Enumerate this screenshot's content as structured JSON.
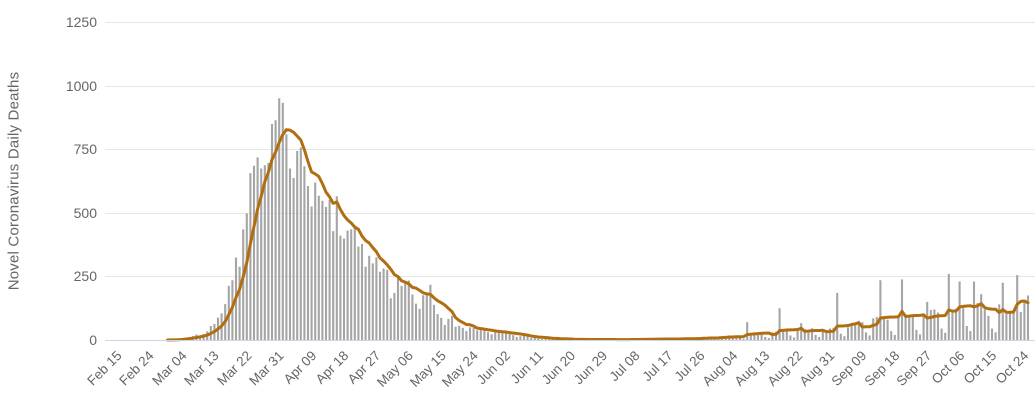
{
  "chart_data": {
    "type": "bar",
    "title": "",
    "xlabel": "",
    "ylabel": "Novel Coronavirus Daily Deaths",
    "ylim": [
      0,
      1250
    ],
    "y_ticks": [
      0,
      250,
      500,
      750,
      1000,
      1250
    ],
    "grid": "horizontal-only",
    "legend": "none",
    "x_tick_step_days": 9,
    "x_tick_labels": [
      "Feb 15",
      "Feb 24",
      "Mar 04",
      "Mar 13",
      "Mar 22",
      "Mar 31",
      "Apr 09",
      "Apr 18",
      "Apr 27",
      "May 06",
      "May 15",
      "May 24",
      "Jun 02",
      "Jun 11",
      "Jun 20",
      "Jun 29",
      "Jul 08",
      "Jul 17",
      "Jul 26",
      "Aug 04",
      "Aug 13",
      "Aug 22",
      "Aug 31",
      "Sep 09",
      "Sep 18",
      "Sep 27",
      "Oct 06",
      "Oct 15",
      "Oct 24"
    ],
    "x_start": "Feb 15",
    "x_end": "Oct 27",
    "series": [
      {
        "name": "daily-deaths",
        "render": "bar",
        "values": [
          0,
          0,
          0,
          0,
          0,
          0,
          0,
          0,
          0,
          0,
          0,
          0,
          0,
          0,
          0,
          0,
          1,
          2,
          2,
          3,
          5,
          10,
          12,
          16,
          22,
          18,
          23,
          34,
          55,
          63,
          88,
          105,
          141,
          213,
          235,
          324,
          288,
          435,
          498,
          656,
          685,
          718,
          674,
          687,
          696,
          849,
          864,
          950,
          932,
          809,
          674,
          637,
          743,
          757,
          683,
          605,
          525,
          619,
          567,
          547,
          523,
          551,
          428,
          565,
          410,
          399,
          430,
          435,
          440,
          367,
          378,
          288,
          331,
          301,
          325,
          268,
          281,
          276,
          164,
          185,
          244,
          213,
          229,
          234,
          179,
          143,
          123,
          176,
          184,
          217,
          138,
          102,
          87,
          59,
          83,
          95,
          52,
          56,
          48,
          35,
          50,
          47,
          38,
          39,
          43,
          31,
          22,
          30,
          34,
          28,
          32,
          25,
          19,
          12,
          15,
          18,
          14,
          9,
          10,
          6,
          4,
          7,
          8,
          5,
          4,
          3,
          2,
          1,
          3,
          2,
          2,
          4,
          2,
          1,
          1,
          2,
          3,
          2,
          1,
          2,
          1,
          0,
          1,
          3,
          2,
          4,
          3,
          2,
          1,
          3,
          5,
          4,
          6,
          4,
          3,
          1,
          4,
          6,
          5,
          8,
          7,
          4,
          2,
          7,
          9,
          11,
          10,
          12,
          5,
          3,
          14,
          16,
          18,
          15,
          17,
          8,
          5,
          70,
          27,
          25,
          23,
          26,
          12,
          8,
          30,
          33,
          125,
          32,
          34,
          18,
          10,
          36,
          66,
          42,
          40,
          46,
          20,
          12,
          42,
          30,
          45,
          48,
          185,
          25,
          15,
          50,
          58,
          65,
          75,
          70,
          30,
          18,
          85,
          90,
          235,
          88,
          80,
          35,
          20,
          90,
          238,
          100,
          95,
          92,
          40,
          22,
          105,
          150,
          118,
          120,
          108,
          45,
          28,
          260,
          115,
          122,
          230,
          125,
          55,
          35,
          230,
          145,
          180,
          120,
          95,
          45,
          30,
          140,
          225,
          110,
          115,
          108,
          255,
          110,
          150,
          175
        ]
      },
      {
        "name": "7-day-moving-average",
        "render": "line",
        "derived_from": "daily-deaths",
        "window": 7,
        "mode": "trailing-mean"
      }
    ],
    "colors": {
      "bars": "#a5a5a5",
      "line": "#b06e10",
      "grid": "#e6e6e6",
      "axis_line": "#ccd6eb",
      "labels": "#666666"
    }
  }
}
